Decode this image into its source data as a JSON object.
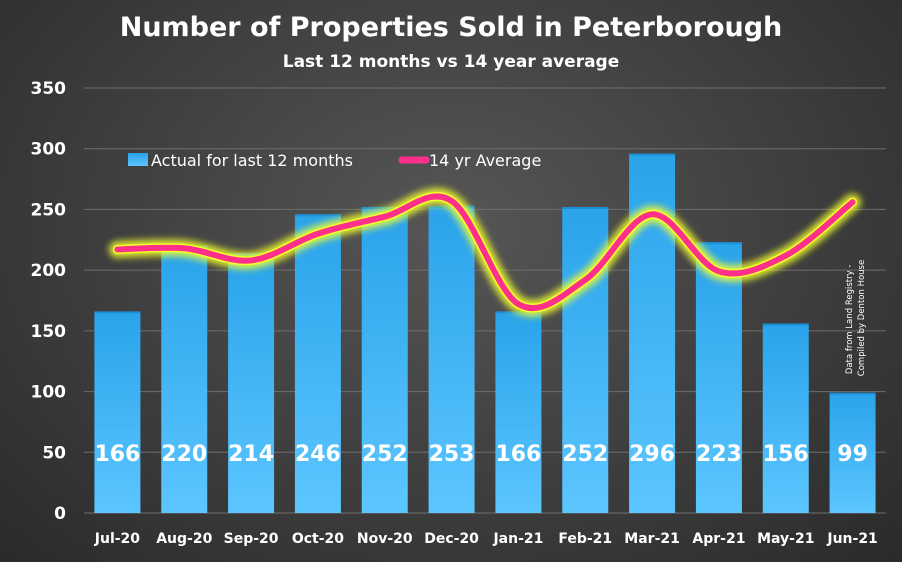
{
  "chart_data": {
    "type": "bar",
    "title": "Number of Properties Sold in Peterborough",
    "subtitle": "Last 12 months vs 14 year average",
    "categories": [
      "Jul-20",
      "Aug-20",
      "Sep-20",
      "Oct-20",
      "Nov-20",
      "Dec-20",
      "Jan-21",
      "Feb-21",
      "Mar-21",
      "Apr-21",
      "May-21",
      "Jun-21"
    ],
    "series": [
      {
        "name": "Actual for last 12 months",
        "type": "bar",
        "values": [
          166,
          220,
          214,
          246,
          252,
          253,
          166,
          252,
          296,
          223,
          156,
          99
        ],
        "color": "#3db0f0"
      },
      {
        "name": "14 yr Average",
        "type": "line",
        "values": [
          217,
          218,
          208,
          230,
          244,
          257,
          172,
          192,
          246,
          199,
          212,
          256
        ],
        "color": "#ff2f8c",
        "glow_color": "#f2ff2a"
      }
    ],
    "ylim": [
      0,
      350
    ],
    "yticks": [
      0,
      50,
      100,
      150,
      200,
      250,
      300,
      350
    ],
    "grid": true,
    "legend_position": "top-left",
    "source_note": [
      "Data from Land Registry -",
      "Compiled by Denton House"
    ],
    "background_color": "#3f3f3f"
  }
}
